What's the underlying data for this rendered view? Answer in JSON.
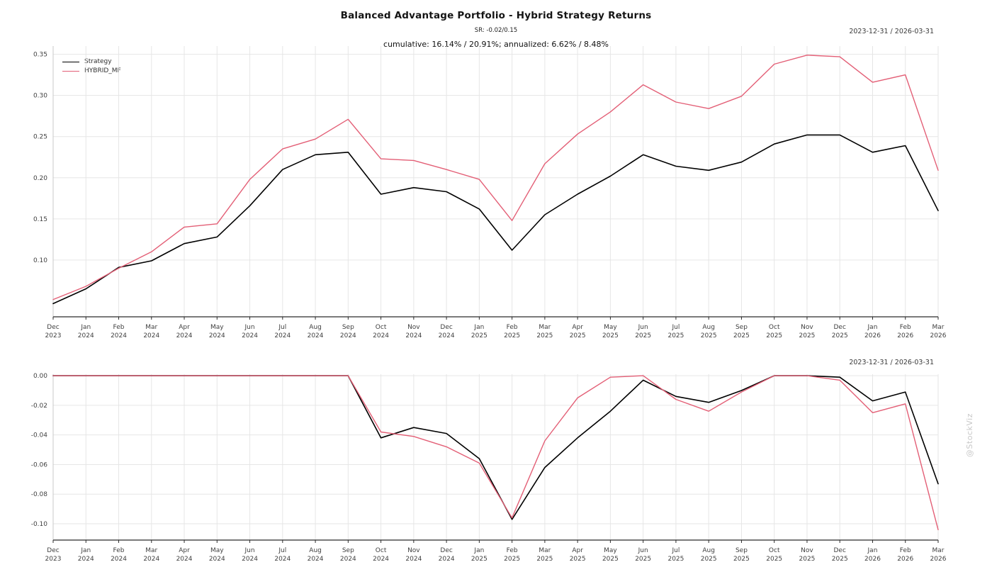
{
  "header": {
    "title": "Balanced Advantage Portfolio - Hybrid Strategy Returns",
    "subtitle": "SR: -0.02/0.15",
    "stats": "cumulative: 16.14% / 20.91%; annualized: 6.62% / 8.48%"
  },
  "date_range_label": "2023-12-31 / 2026-03-31",
  "watermark": "@StockViz",
  "colors": {
    "strategy": "#000000",
    "hybrid_mf": "#e35f76",
    "grid": "#e6e6e6",
    "bottom_spine": "#2b2b2b",
    "left_spine": "#c9c9c9",
    "tick_label": "#3f3f3f",
    "watermark": "#c8c8c8"
  },
  "legend": {
    "items": [
      {
        "label": "Strategy",
        "color_key": "strategy"
      },
      {
        "label": "HYBRID_MF",
        "color_key": "hybrid_mf"
      }
    ]
  },
  "chart_data": [
    {
      "type": "line",
      "title": "",
      "xlabel": "",
      "ylabel": "",
      "legend_position": "upper-left",
      "grid": true,
      "date_range": "2023-12-31 / 2026-03-31",
      "categories": [
        "Dec 2023",
        "Jan 2024",
        "Feb 2024",
        "Mar 2024",
        "Apr 2024",
        "May 2024",
        "Jun 2024",
        "Jul 2024",
        "Aug 2024",
        "Sep 2024",
        "Oct 2024",
        "Nov 2024",
        "Dec 2024",
        "Jan 2025",
        "Feb 2025",
        "Mar 2025",
        "Apr 2025",
        "May 2025",
        "Jun 2025",
        "Jul 2025",
        "Aug 2025",
        "Sep 2025",
        "Oct 2025",
        "Nov 2025",
        "Dec 2025",
        "Jan 2026",
        "Feb 2026",
        "Mar 2026"
      ],
      "ylim": [
        0.031,
        0.36
      ],
      "yticks": [
        0.35,
        0.3,
        0.25,
        0.2,
        0.15,
        0.1
      ],
      "ytick_labels": [
        "0.35",
        "0.30",
        "0.25",
        "0.20",
        "0.15",
        "0.10"
      ],
      "series": [
        {
          "name": "Strategy",
          "color_key": "strategy",
          "width": 1.6,
          "values": [
            0.047,
            0.065,
            0.091,
            0.099,
            0.12,
            0.128,
            0.166,
            0.21,
            0.228,
            0.231,
            0.18,
            0.188,
            0.183,
            0.162,
            0.112,
            0.155,
            0.18,
            0.202,
            0.228,
            0.214,
            0.209,
            0.219,
            0.241,
            0.252,
            0.252,
            0.231,
            0.239,
            0.16
          ]
        },
        {
          "name": "HYBRID_MF",
          "color_key": "hybrid_mf",
          "width": 1.4,
          "values": [
            0.052,
            0.068,
            0.09,
            0.11,
            0.14,
            0.144,
            0.198,
            0.235,
            0.247,
            0.271,
            0.223,
            0.221,
            0.21,
            0.198,
            0.148,
            0.217,
            0.253,
            0.28,
            0.313,
            0.292,
            0.284,
            0.299,
            0.338,
            0.349,
            0.347,
            0.316,
            0.325,
            0.209
          ]
        }
      ]
    },
    {
      "type": "line",
      "title": "",
      "xlabel": "",
      "ylabel": "",
      "legend_position": "none",
      "grid": true,
      "date_range": "2023-12-31 / 2026-03-31",
      "categories": [
        "Dec 2023",
        "Jan 2024",
        "Feb 2024",
        "Mar 2024",
        "Apr 2024",
        "May 2024",
        "Jun 2024",
        "Jul 2024",
        "Aug 2024",
        "Sep 2024",
        "Oct 2024",
        "Nov 2024",
        "Dec 2024",
        "Jan 2025",
        "Feb 2025",
        "Mar 2025",
        "Apr 2025",
        "May 2025",
        "Jun 2025",
        "Jul 2025",
        "Aug 2025",
        "Sep 2025",
        "Oct 2025",
        "Nov 2025",
        "Dec 2025",
        "Jan 2026",
        "Feb 2026",
        "Mar 2026"
      ],
      "ylim": [
        -0.111,
        0.001
      ],
      "yticks": [
        0.0,
        -0.02,
        -0.04,
        -0.06,
        -0.08,
        -0.1
      ],
      "ytick_labels": [
        "0.00",
        "-0.02",
        "-0.04",
        "-0.06",
        "-0.08",
        "-0.10"
      ],
      "series": [
        {
          "name": "Strategy",
          "color_key": "strategy",
          "width": 1.6,
          "values": [
            0,
            0,
            0,
            0,
            0,
            0,
            0,
            0,
            0,
            0,
            -0.042,
            -0.035,
            -0.039,
            -0.056,
            -0.097,
            -0.062,
            -0.042,
            -0.024,
            -0.003,
            -0.014,
            -0.018,
            -0.01,
            0.0,
            0.0,
            -0.001,
            -0.017,
            -0.011,
            -0.073
          ]
        },
        {
          "name": "HYBRID_MF",
          "color_key": "hybrid_mf",
          "width": 1.4,
          "values": [
            0,
            0,
            0,
            0,
            0,
            0,
            0,
            0,
            0,
            0,
            -0.038,
            -0.041,
            -0.048,
            -0.059,
            -0.096,
            -0.044,
            -0.015,
            -0.001,
            0.0,
            -0.016,
            -0.024,
            -0.011,
            0.0,
            0.0,
            -0.003,
            -0.025,
            -0.019,
            -0.104
          ]
        }
      ]
    }
  ]
}
